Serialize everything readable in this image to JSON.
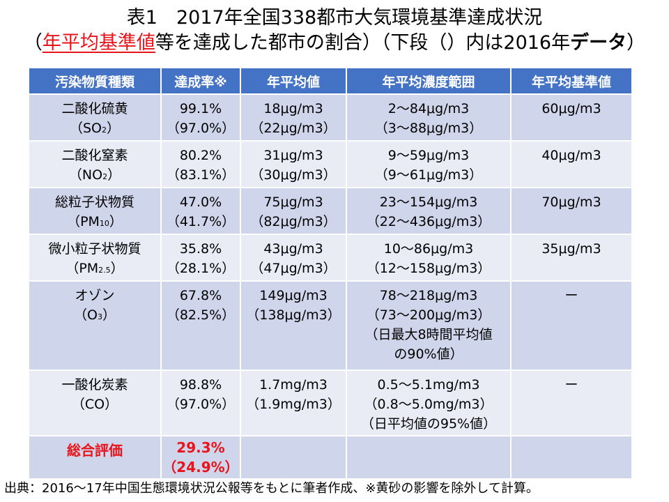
{
  "title": {
    "line1": "表1　2017年全国338都市大気環境基準達成状況",
    "line2_open": "（",
    "line2_highlight": "年平均基準値",
    "line2_rest": "等を達成した都市の割合）（下段（）内は2016年",
    "line2_bold": "データ",
    "line2_close": "）"
  },
  "table": {
    "headers": [
      "汚染物質種類",
      "達成率※",
      "年平均値",
      "年平均濃度範囲",
      "年平均基準値"
    ],
    "rows": [
      {
        "name": "二酸化硫黄",
        "formula_main": "（SO",
        "formula_sub": "2",
        "formula_close": "）",
        "rate": "99.1%",
        "rate_prev": "（97.0%）",
        "avg": "18μg/m3",
        "avg_prev": "（22μg/m3）",
        "range_lines": [
          "2～84μg/m3",
          "（3～88μg/m3）"
        ],
        "standard": "60μg/m3"
      },
      {
        "name": "二酸化窒素",
        "formula_main": "（NO",
        "formula_sub": "2",
        "formula_close": "）",
        "rate": "80.2%",
        "rate_prev": "（83.1%）",
        "avg": "31μg/m3",
        "avg_prev": "（30μg/m3）",
        "range_lines": [
          "9～59μg/m3",
          "（9～61μg/m3）"
        ],
        "standard": "40μg/m3"
      },
      {
        "name": "総粒子状物質",
        "formula_main": "（PM",
        "formula_sub": "10",
        "formula_close": "）",
        "rate": "47.0%",
        "rate_prev": "（41.7%）",
        "avg": "75μg/m3",
        "avg_prev": "（82μg/m3）",
        "range_lines": [
          "23～154μg/m3",
          "（22～436μg/m3）"
        ],
        "standard": "70μg/m3"
      },
      {
        "name": "微小粒子状物質",
        "formula_main": "（PM",
        "formula_sub": "2.5",
        "formula_close": "）",
        "rate": "35.8%",
        "rate_prev": "（28.1%）",
        "avg": "43μg/m3",
        "avg_prev": "（47μg/m3）",
        "range_lines": [
          "10～86μg/m3",
          "（12～158μg/m3）"
        ],
        "standard": "35μg/m3"
      },
      {
        "name": "オゾン",
        "formula_main": "（O",
        "formula_sub": "3",
        "formula_close": "）",
        "rate": "67.8%",
        "rate_prev": "（82.5%）",
        "avg": "149μg/m3",
        "avg_prev": "（138μg/m3）",
        "range_lines": [
          "78～218μg/m3",
          "（73～200μg/m3）",
          "（日最大8時間平均値",
          "の90%値）"
        ],
        "standard": "ー"
      },
      {
        "name": "一酸化炭素",
        "formula_main": "（CO",
        "formula_sub": "",
        "formula_close": "）",
        "rate": "98.8%",
        "rate_prev": "（97.0%）",
        "avg": "1.7mg/m3",
        "avg_prev": "（1.9mg/m3）",
        "range_lines": [
          "0.5～5.1mg/m3",
          "（0.8～5.0mg/m3）",
          "（日平均値の95%値）"
        ],
        "standard": "ー"
      }
    ],
    "total": {
      "name": "総合評価",
      "rate": "29.3%",
      "rate_prev": "（24.9%）"
    }
  },
  "note": "出典：2016～17年中国生態環境状況公報等をもとに筆者作成、※黄砂の影響を除外して計算。",
  "colors": {
    "header_bg": "#4472c4",
    "row_dark": "#cfd5ea",
    "row_light": "#e9ebf5",
    "highlight_red": "#e8141b"
  }
}
